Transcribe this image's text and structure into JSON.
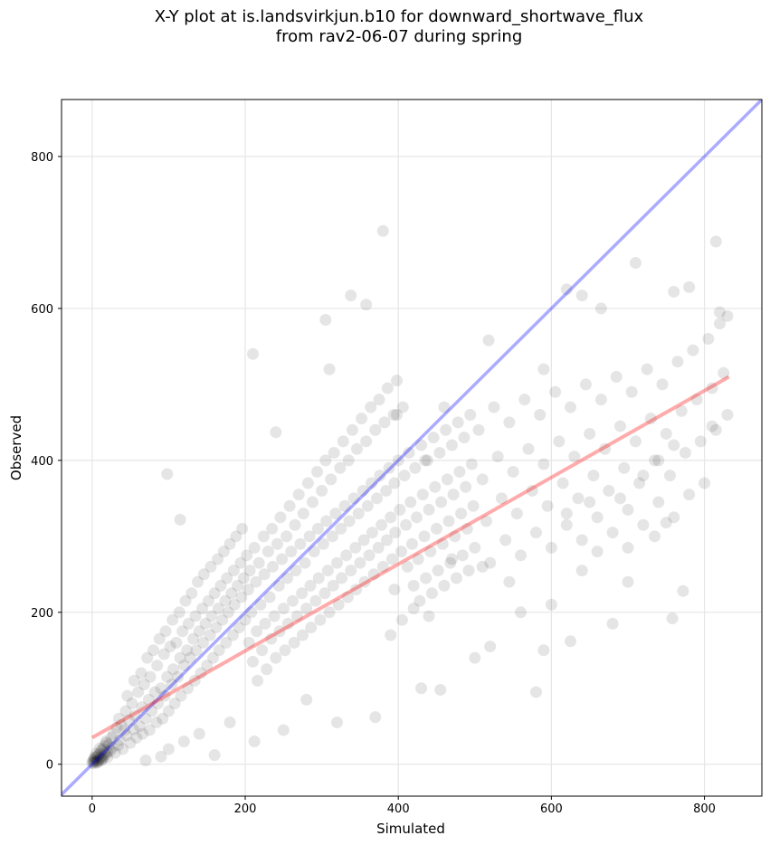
{
  "chart_data": {
    "type": "scatter",
    "title_line1": "X-Y plot at is.landsvirkjun.b10 for downward_shortwave_flux",
    "title_line2": "from rav2-06-07 during spring",
    "xlabel": "Simulated",
    "ylabel": "Observed",
    "xlim": [
      -40,
      875
    ],
    "ylim": [
      -42,
      875
    ],
    "xticks": [
      0,
      200,
      400,
      600,
      800
    ],
    "yticks": [
      0,
      200,
      400,
      600,
      800
    ],
    "grid": true,
    "one_to_one_line": {
      "color": "#0000ff",
      "from": [
        -40,
        -40
      ],
      "to": [
        875,
        875
      ]
    },
    "fit_line": {
      "color": "#ff0000",
      "from": [
        0,
        35
      ],
      "to": [
        832,
        510
      ]
    },
    "points": [
      [
        0,
        2
      ],
      [
        1,
        4
      ],
      [
        2,
        6
      ],
      [
        3,
        3
      ],
      [
        4,
        8
      ],
      [
        5,
        5
      ],
      [
        6,
        10
      ],
      [
        7,
        4
      ],
      [
        8,
        12
      ],
      [
        9,
        6
      ],
      [
        10,
        14
      ],
      [
        11,
        9
      ],
      [
        12,
        18
      ],
      [
        13,
        7
      ],
      [
        14,
        20
      ],
      [
        15,
        11
      ],
      [
        16,
        24
      ],
      [
        18,
        13
      ],
      [
        19,
        28
      ],
      [
        20,
        16
      ],
      [
        2,
        1
      ],
      [
        3,
        9
      ],
      [
        5,
        14
      ],
      [
        6,
        2
      ],
      [
        8,
        3
      ],
      [
        10,
        21
      ],
      [
        12,
        5
      ],
      [
        14,
        8
      ],
      [
        16,
        15
      ],
      [
        18,
        30
      ],
      [
        20,
        9
      ],
      [
        22,
        26
      ],
      [
        24,
        18
      ],
      [
        25,
        35
      ],
      [
        26,
        22
      ],
      [
        28,
        40
      ],
      [
        30,
        15
      ],
      [
        32,
        48
      ],
      [
        34,
        25
      ],
      [
        35,
        60
      ],
      [
        36,
        32
      ],
      [
        38,
        52
      ],
      [
        40,
        20
      ],
      [
        42,
        45
      ],
      [
        44,
        70
      ],
      [
        45,
        38
      ],
      [
        46,
        90
      ],
      [
        48,
        58
      ],
      [
        50,
        28
      ],
      [
        52,
        80
      ],
      [
        54,
        46
      ],
      [
        55,
        110
      ],
      [
        56,
        64
      ],
      [
        58,
        35
      ],
      [
        60,
        95
      ],
      [
        62,
        50
      ],
      [
        64,
        120
      ],
      [
        65,
        75
      ],
      [
        66,
        40
      ],
      [
        68,
        105
      ],
      [
        70,
        60
      ],
      [
        72,
        140
      ],
      [
        74,
        85
      ],
      [
        75,
        45
      ],
      [
        76,
        115
      ],
      [
        78,
        70
      ],
      [
        80,
        150
      ],
      [
        82,
        95
      ],
      [
        84,
        55
      ],
      [
        85,
        130
      ],
      [
        86,
        80
      ],
      [
        88,
        165
      ],
      [
        90,
        100
      ],
      [
        92,
        60
      ],
      [
        94,
        145
      ],
      [
        95,
        90
      ],
      [
        96,
        175
      ],
      [
        98,
        115
      ],
      [
        100,
        70
      ],
      [
        102,
        155
      ],
      [
        104,
        105
      ],
      [
        105,
        190
      ],
      [
        106,
        125
      ],
      [
        108,
        80
      ],
      [
        110,
        160
      ],
      [
        112,
        115
      ],
      [
        114,
        200
      ],
      [
        115,
        140
      ],
      [
        116,
        90
      ],
      [
        118,
        175
      ],
      [
        120,
        130
      ],
      [
        122,
        215
      ],
      [
        124,
        150
      ],
      [
        125,
        100
      ],
      [
        126,
        185
      ],
      [
        128,
        140
      ],
      [
        130,
        225
      ],
      [
        132,
        165
      ],
      [
        134,
        110
      ],
      [
        135,
        195
      ],
      [
        136,
        150
      ],
      [
        138,
        240
      ],
      [
        140,
        175
      ],
      [
        142,
        120
      ],
      [
        144,
        205
      ],
      [
        145,
        160
      ],
      [
        146,
        250
      ],
      [
        148,
        185
      ],
      [
        150,
        130
      ],
      [
        152,
        215
      ],
      [
        154,
        170
      ],
      [
        155,
        260
      ],
      [
        156,
        195
      ],
      [
        158,
        140
      ],
      [
        160,
        225
      ],
      [
        162,
        180
      ],
      [
        164,
        270
      ],
      [
        165,
        205
      ],
      [
        166,
        150
      ],
      [
        168,
        235
      ],
      [
        170,
        190
      ],
      [
        172,
        280
      ],
      [
        174,
        215
      ],
      [
        175,
        160
      ],
      [
        176,
        245
      ],
      [
        178,
        200
      ],
      [
        180,
        290
      ],
      [
        182,
        225
      ],
      [
        184,
        170
      ],
      [
        185,
        255
      ],
      [
        186,
        210
      ],
      [
        188,
        300
      ],
      [
        190,
        235
      ],
      [
        192,
        180
      ],
      [
        194,
        265
      ],
      [
        195,
        220
      ],
      [
        196,
        310
      ],
      [
        198,
        245
      ],
      [
        200,
        190
      ],
      [
        202,
        275
      ],
      [
        204,
        230
      ],
      [
        205,
        160
      ],
      [
        206,
        255
      ],
      [
        208,
        200
      ],
      [
        210,
        135
      ],
      [
        212,
        285
      ],
      [
        214,
        240
      ],
      [
        215,
        175
      ],
      [
        216,
        110
      ],
      [
        218,
        265
      ],
      [
        220,
        210
      ],
      [
        222,
        150
      ],
      [
        224,
        300
      ],
      [
        225,
        250
      ],
      [
        226,
        185
      ],
      [
        228,
        125
      ],
      [
        230,
        280
      ],
      [
        232,
        220
      ],
      [
        234,
        165
      ],
      [
        235,
        310
      ],
      [
        236,
        260
      ],
      [
        238,
        195
      ],
      [
        240,
        140
      ],
      [
        242,
        290
      ],
      [
        244,
        235
      ],
      [
        245,
        175
      ],
      [
        246,
        325
      ],
      [
        248,
        270
      ],
      [
        250,
        205
      ],
      [
        252,
        150
      ],
      [
        254,
        300
      ],
      [
        255,
        245
      ],
      [
        256,
        185
      ],
      [
        258,
        340
      ],
      [
        260,
        280
      ],
      [
        262,
        215
      ],
      [
        264,
        160
      ],
      [
        265,
        315
      ],
      [
        266,
        255
      ],
      [
        268,
        195
      ],
      [
        270,
        355
      ],
      [
        272,
        290
      ],
      [
        274,
        225
      ],
      [
        275,
        170
      ],
      [
        276,
        330
      ],
      [
        278,
        265
      ],
      [
        280,
        205
      ],
      [
        282,
        370
      ],
      [
        284,
        300
      ],
      [
        285,
        235
      ],
      [
        286,
        180
      ],
      [
        288,
        345
      ],
      [
        290,
        280
      ],
      [
        292,
        215
      ],
      [
        294,
        385
      ],
      [
        295,
        310
      ],
      [
        296,
        245
      ],
      [
        298,
        190
      ],
      [
        300,
        360
      ],
      [
        302,
        290
      ],
      [
        304,
        225
      ],
      [
        305,
        400
      ],
      [
        306,
        320
      ],
      [
        308,
        255
      ],
      [
        310,
        200
      ],
      [
        312,
        375
      ],
      [
        314,
        300
      ],
      [
        315,
        235
      ],
      [
        316,
        410
      ],
      [
        318,
        330
      ],
      [
        320,
        265
      ],
      [
        322,
        210
      ],
      [
        324,
        390
      ],
      [
        325,
        310
      ],
      [
        326,
        245
      ],
      [
        328,
        425
      ],
      [
        330,
        340
      ],
      [
        332,
        275
      ],
      [
        334,
        220
      ],
      [
        335,
        400
      ],
      [
        336,
        320
      ],
      [
        338,
        255
      ],
      [
        340,
        440
      ],
      [
        342,
        350
      ],
      [
        344,
        285
      ],
      [
        345,
        230
      ],
      [
        346,
        415
      ],
      [
        348,
        330
      ],
      [
        350,
        265
      ],
      [
        352,
        455
      ],
      [
        354,
        360
      ],
      [
        355,
        295
      ],
      [
        356,
        240
      ],
      [
        358,
        425
      ],
      [
        360,
        340
      ],
      [
        362,
        275
      ],
      [
        364,
        470
      ],
      [
        365,
        370
      ],
      [
        366,
        305
      ],
      [
        368,
        250
      ],
      [
        370,
        440
      ],
      [
        372,
        350
      ],
      [
        374,
        285
      ],
      [
        375,
        480
      ],
      [
        376,
        380
      ],
      [
        378,
        315
      ],
      [
        380,
        260
      ],
      [
        382,
        450
      ],
      [
        384,
        360
      ],
      [
        385,
        295
      ],
      [
        386,
        495
      ],
      [
        388,
        390
      ],
      [
        390,
        325
      ],
      [
        392,
        270
      ],
      [
        394,
        460
      ],
      [
        395,
        370
      ],
      [
        396,
        305
      ],
      [
        398,
        505
      ],
      [
        400,
        400
      ],
      [
        402,
        335
      ],
      [
        404,
        280
      ],
      [
        406,
        470
      ],
      [
        408,
        380
      ],
      [
        410,
        315
      ],
      [
        412,
        260
      ],
      [
        414,
        410
      ],
      [
        416,
        345
      ],
      [
        418,
        290
      ],
      [
        420,
        235
      ],
      [
        422,
        390
      ],
      [
        424,
        325
      ],
      [
        426,
        270
      ],
      [
        428,
        215
      ],
      [
        430,
        420
      ],
      [
        432,
        355
      ],
      [
        434,
        300
      ],
      [
        436,
        245
      ],
      [
        438,
        400
      ],
      [
        440,
        335
      ],
      [
        442,
        280
      ],
      [
        444,
        225
      ],
      [
        446,
        430
      ],
      [
        448,
        365
      ],
      [
        450,
        310
      ],
      [
        452,
        255
      ],
      [
        454,
        410
      ],
      [
        456,
        345
      ],
      [
        458,
        290
      ],
      [
        460,
        235
      ],
      [
        462,
        440
      ],
      [
        464,
        375
      ],
      [
        466,
        320
      ],
      [
        468,
        265
      ],
      [
        470,
        420
      ],
      [
        472,
        355
      ],
      [
        474,
        300
      ],
      [
        476,
        245
      ],
      [
        478,
        450
      ],
      [
        480,
        385
      ],
      [
        482,
        330
      ],
      [
        484,
        275
      ],
      [
        486,
        430
      ],
      [
        488,
        365
      ],
      [
        490,
        310
      ],
      [
        492,
        255
      ],
      [
        494,
        460
      ],
      [
        496,
        395
      ],
      [
        498,
        340
      ],
      [
        500,
        285
      ],
      [
        505,
        440
      ],
      [
        510,
        375
      ],
      [
        515,
        320
      ],
      [
        520,
        265
      ],
      [
        525,
        470
      ],
      [
        530,
        405
      ],
      [
        535,
        350
      ],
      [
        540,
        295
      ],
      [
        545,
        450
      ],
      [
        550,
        385
      ],
      [
        555,
        330
      ],
      [
        560,
        275
      ],
      [
        565,
        480
      ],
      [
        570,
        415
      ],
      [
        575,
        360
      ],
      [
        580,
        305
      ],
      [
        585,
        460
      ],
      [
        590,
        395
      ],
      [
        595,
        340
      ],
      [
        600,
        285
      ],
      [
        605,
        490
      ],
      [
        610,
        425
      ],
      [
        615,
        370
      ],
      [
        620,
        315
      ],
      [
        625,
        470
      ],
      [
        630,
        405
      ],
      [
        635,
        350
      ],
      [
        640,
        295
      ],
      [
        645,
        500
      ],
      [
        650,
        435
      ],
      [
        655,
        380
      ],
      [
        660,
        325
      ],
      [
        665,
        480
      ],
      [
        670,
        415
      ],
      [
        675,
        360
      ],
      [
        680,
        305
      ],
      [
        685,
        510
      ],
      [
        690,
        445
      ],
      [
        695,
        390
      ],
      [
        700,
        335
      ],
      [
        705,
        490
      ],
      [
        710,
        425
      ],
      [
        715,
        370
      ],
      [
        720,
        315
      ],
      [
        725,
        520
      ],
      [
        730,
        455
      ],
      [
        735,
        400
      ],
      [
        740,
        345
      ],
      [
        745,
        500
      ],
      [
        750,
        435
      ],
      [
        755,
        380
      ],
      [
        760,
        325
      ],
      [
        765,
        530
      ],
      [
        770,
        465
      ],
      [
        775,
        410
      ],
      [
        780,
        355
      ],
      [
        785,
        545
      ],
      [
        790,
        480
      ],
      [
        795,
        425
      ],
      [
        800,
        370
      ],
      [
        805,
        560
      ],
      [
        810,
        495
      ],
      [
        815,
        440
      ],
      [
        820,
        580
      ],
      [
        825,
        515
      ],
      [
        830,
        460
      ],
      [
        98,
        382
      ],
      [
        115,
        322
      ],
      [
        210,
        540
      ],
      [
        240,
        437
      ],
      [
        305,
        585
      ],
      [
        310,
        520
      ],
      [
        338,
        617
      ],
      [
        358,
        605
      ],
      [
        380,
        702
      ],
      [
        398,
        460
      ],
      [
        435,
        400
      ],
      [
        460,
        470
      ],
      [
        518,
        558
      ],
      [
        590,
        520
      ],
      [
        620,
        625
      ],
      [
        640,
        617
      ],
      [
        665,
        600
      ],
      [
        710,
        660
      ],
      [
        760,
        622
      ],
      [
        780,
        628
      ],
      [
        815,
        688
      ],
      [
        820,
        595
      ],
      [
        830,
        590
      ],
      [
        370,
        62
      ],
      [
        430,
        100
      ],
      [
        455,
        98
      ],
      [
        500,
        140
      ],
      [
        520,
        155
      ],
      [
        580,
        95
      ],
      [
        590,
        150
      ],
      [
        625,
        162
      ],
      [
        680,
        185
      ],
      [
        700,
        240
      ],
      [
        758,
        192
      ],
      [
        772,
        228
      ],
      [
        810,
        445
      ],
      [
        250,
        45
      ],
      [
        280,
        85
      ],
      [
        320,
        55
      ],
      [
        160,
        12
      ],
      [
        212,
        30
      ],
      [
        180,
        55
      ],
      [
        140,
        40
      ],
      [
        120,
        30
      ],
      [
        100,
        20
      ],
      [
        90,
        10
      ],
      [
        70,
        5
      ],
      [
        560,
        200
      ],
      [
        600,
        210
      ],
      [
        640,
        255
      ],
      [
        660,
        280
      ],
      [
        700,
        285
      ],
      [
        735,
        300
      ],
      [
        750,
        318
      ],
      [
        620,
        330
      ],
      [
        650,
        345
      ],
      [
        690,
        350
      ],
      [
        720,
        380
      ],
      [
        740,
        400
      ],
      [
        760,
        420
      ],
      [
        545,
        240
      ],
      [
        510,
        260
      ],
      [
        470,
        270
      ],
      [
        440,
        195
      ],
      [
        420,
        205
      ],
      [
        405,
        190
      ],
      [
        395,
        230
      ],
      [
        390,
        170
      ]
    ]
  }
}
